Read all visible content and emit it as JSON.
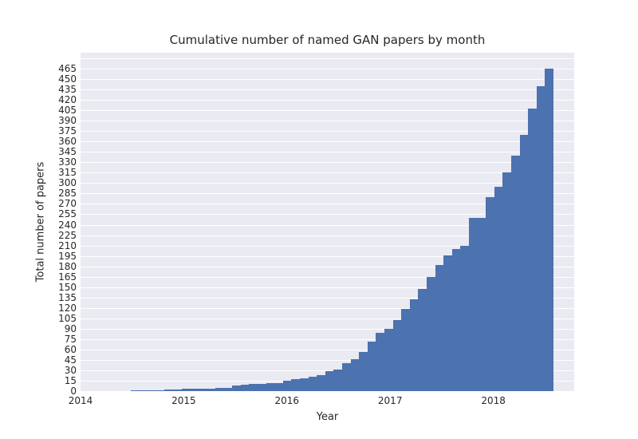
{
  "chart_data": {
    "type": "bar",
    "subtype": "cumulative-histogram",
    "title": "Cumulative number of named GAN papers by month",
    "xlabel": "Year",
    "ylabel": "Total number of papers",
    "legend": null,
    "grid": "on",
    "plot_bg_color": "#eaeaf2",
    "grid_color": "#ffffff",
    "bar_color": "#4c72b0",
    "text_color": "#262626",
    "xlim": [
      2014,
      2018.784
    ],
    "ylim": [
      0,
      488
    ],
    "x_tick_years": [
      2014,
      2015,
      2016,
      2017,
      2018
    ],
    "x_tick_labels": [
      "2014",
      "2015",
      "2016",
      "2017",
      "2018"
    ],
    "y_tick_step": 15,
    "y_grid_max": 480,
    "y_tick_labels": [
      "0",
      "15",
      "30",
      "45",
      "60",
      "75",
      "90",
      "105",
      "120",
      "135",
      "150",
      "165",
      "180",
      "195",
      "210",
      "225",
      "240",
      "255",
      "270",
      "285",
      "300",
      "315",
      "330",
      "345",
      "360",
      "375",
      "390",
      "405",
      "420",
      "435",
      "450",
      "465"
    ],
    "bar_start_year": 2014.487,
    "bar_end_year": 2018.583,
    "months": [
      "2014-06",
      "2014-07",
      "2014-08",
      "2014-09",
      "2014-10",
      "2014-11",
      "2014-12",
      "2015-01",
      "2015-02",
      "2015-03",
      "2015-04",
      "2015-05",
      "2015-06",
      "2015-07",
      "2015-08",
      "2015-09",
      "2015-10",
      "2015-11",
      "2015-12",
      "2016-01",
      "2016-02",
      "2016-03",
      "2016-04",
      "2016-05",
      "2016-06",
      "2016-07",
      "2016-08",
      "2016-09",
      "2016-10",
      "2016-11",
      "2016-12",
      "2017-01",
      "2017-02",
      "2017-03",
      "2017-04",
      "2017-05",
      "2017-06",
      "2017-07",
      "2017-08",
      "2017-09",
      "2017-10",
      "2017-11",
      "2017-12",
      "2018-01",
      "2018-02",
      "2018-03",
      "2018-04",
      "2018-05",
      "2018-06",
      "2018-07"
    ],
    "values": [
      1,
      1,
      1,
      1,
      2,
      2,
      3,
      3,
      3,
      3,
      5,
      5,
      8,
      9,
      10,
      10,
      11,
      12,
      15,
      17,
      18,
      21,
      23,
      29,
      31,
      40,
      46,
      56,
      71,
      84,
      90,
      103,
      118,
      132,
      147,
      165,
      182,
      196,
      205,
      210,
      250,
      250,
      280,
      295,
      315,
      340,
      370,
      408,
      440,
      465
    ]
  }
}
